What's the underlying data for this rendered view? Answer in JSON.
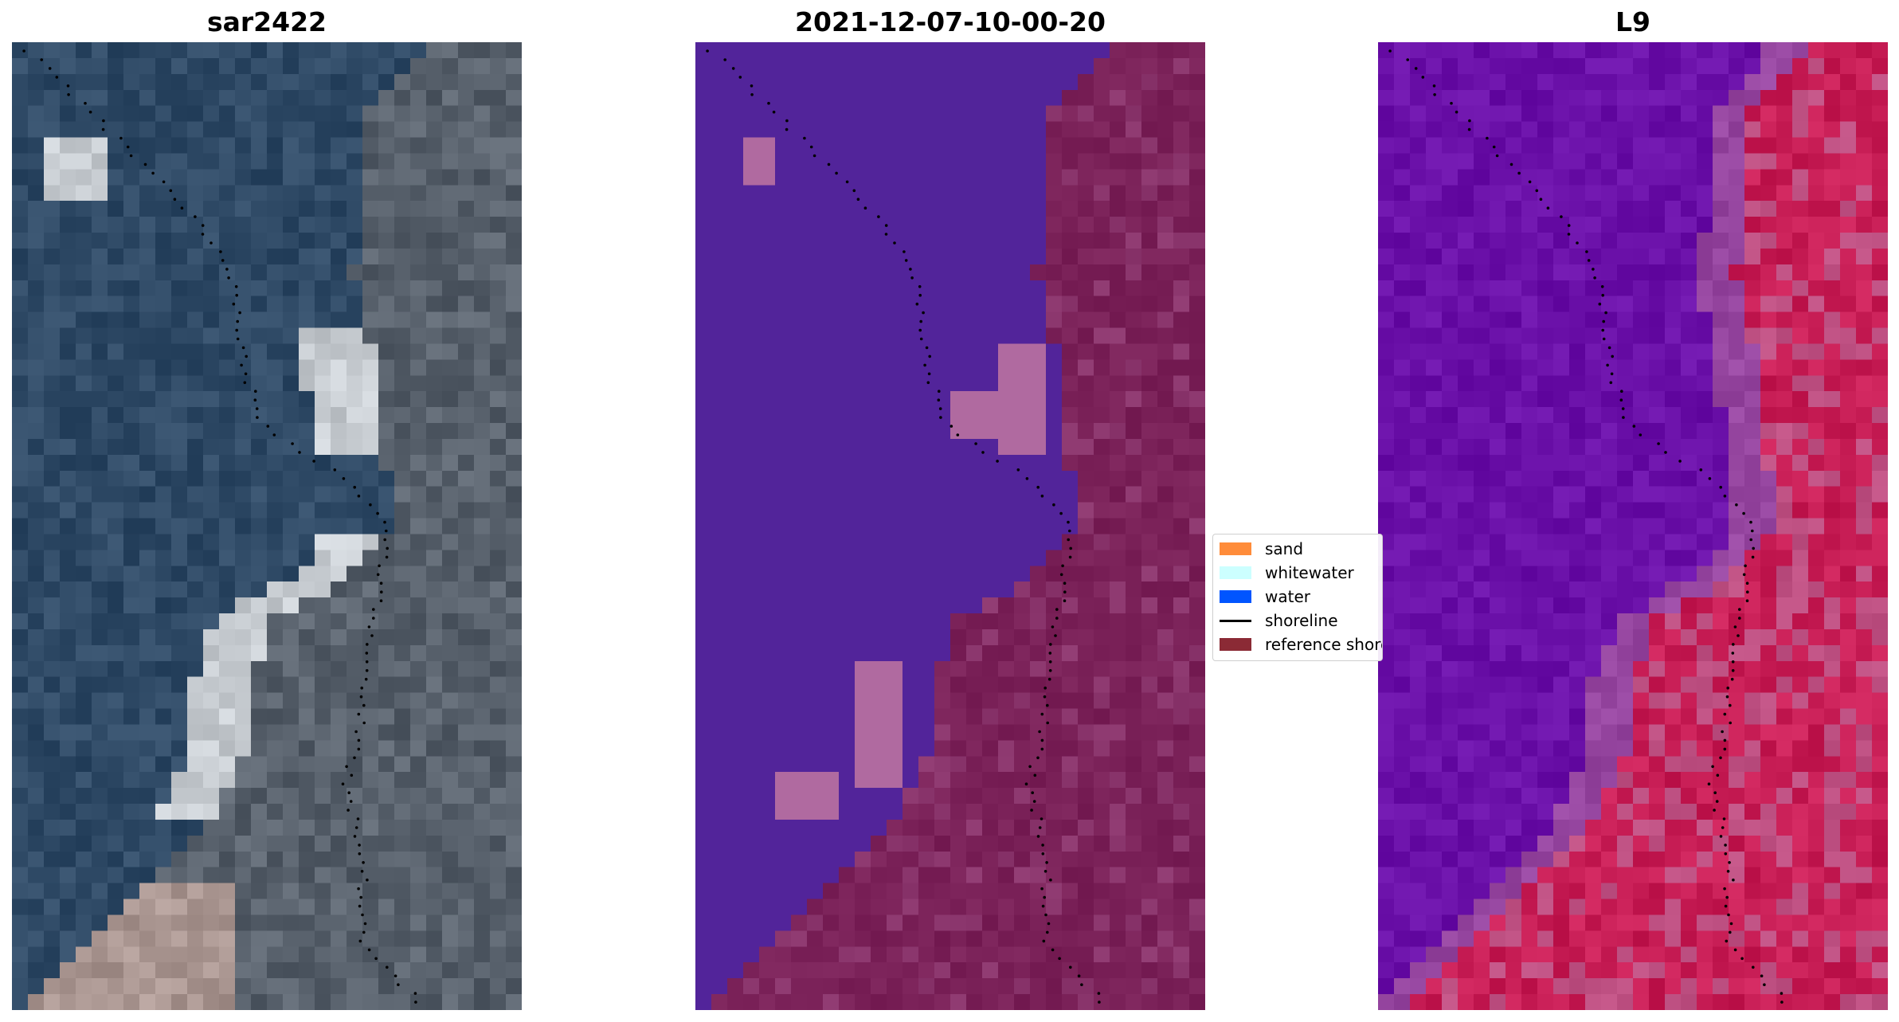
{
  "figure": {
    "panels": [
      {
        "title": "sar2422",
        "kind": "rgb"
      },
      {
        "title": "2021-12-07-10-00-20",
        "kind": "classification"
      },
      {
        "title": "L9",
        "kind": "false-color"
      }
    ]
  },
  "legend": {
    "items": [
      {
        "label": "sand",
        "color": "#ff8c3a",
        "kind": "patch"
      },
      {
        "label": "whitewater",
        "color": "#ccffff",
        "kind": "patch"
      },
      {
        "label": "water",
        "color": "#0055ff",
        "kind": "patch"
      },
      {
        "label": "shoreline",
        "color": "#000000",
        "kind": "line"
      },
      {
        "label": "reference shoreline buffer",
        "color": "#8b2a35",
        "kind": "patch"
      }
    ]
  },
  "colors": {
    "class_water": "#52249a",
    "class_land": "#7a2158",
    "class_bright": "#b06aa0",
    "rgb_water": "#2f4a66",
    "rgb_land": "#58616c",
    "fc_water": "#6a10a8",
    "fc_land": "#c71d55"
  }
}
